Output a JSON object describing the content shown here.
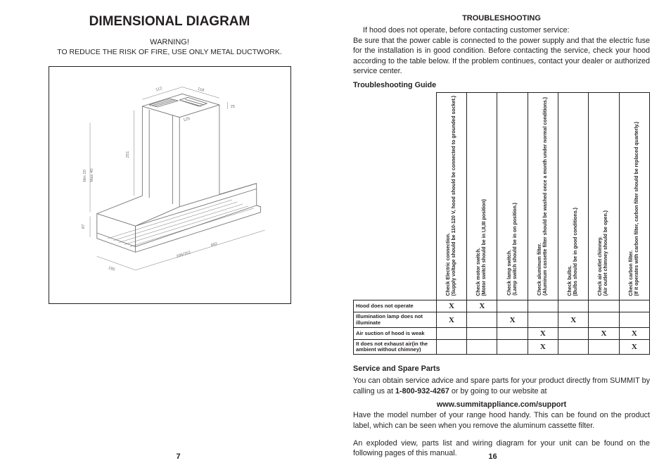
{
  "left": {
    "title": "DIMENSIONAL DIAGRAM",
    "warning_line1": "WARNING!",
    "warning_line2": "TO REDUCE THE RISK OF FIRE, USE ONLY METAL DUCTWORK.",
    "page_number": "7",
    "diagram": {
      "dims": {
        "top_a": "112",
        "top_b": "118",
        "vent_gap": "25",
        "chimney_width": "125",
        "height": "251",
        "min_label": "Min 20",
        "max_label": "Max 40",
        "base_depth_a": "114",
        "base_height": "87",
        "hood_depth": "195",
        "hood_front_a": "295/352",
        "hood_front_b": "492"
      },
      "stroke": "#757374",
      "stroke_width": 0.9
    }
  },
  "right": {
    "ts_heading": "TROUBLESHOOTING",
    "intro_line": "If hood does not operate, before contacting customer service:",
    "intro_para": "Be sure that the power cable is connected to the power supply and that the electric fuse for the installation is in good condition.   Before contacting the service, check your hood according to the table below.  If the problem continues, contact your dealer or  authorized service center.",
    "guide_label": "Troubleshooting Guide",
    "columns": [
      {
        "bold": "Check Electric connection.",
        "sub": "(Supply voltage should be 110-120 V, hood should be connected to grounded socket.)"
      },
      {
        "bold": "Check motor switch.",
        "sub": "(Motor switch should be in I,II,III position)"
      },
      {
        "bold": "Check lamp switch.",
        "sub": "(Lamp switch should be in on position.)"
      },
      {
        "bold": "Check aluminum filter.",
        "sub": "(Aluminum cassette filter should be washed once a month under normal conditions.)"
      },
      {
        "bold": "Check bulbs.",
        "sub": "(Bulbs should be in good conditions.)"
      },
      {
        "bold": "Check air outlet chimney.",
        "sub": "(Air outlet chimney should be open.)"
      },
      {
        "bold": "Check carbon filter.",
        "sub": "(If it operates with carbon filter, carbon filter should be replaced quarterly.)"
      }
    ],
    "rows": [
      {
        "label": "Hood does not operate",
        "marks": [
          "X",
          "X",
          "",
          "",
          "",
          "",
          ""
        ]
      },
      {
        "label": "Illumination lamp does not illuminate",
        "marks": [
          "X",
          "",
          "X",
          "",
          "X",
          "",
          ""
        ]
      },
      {
        "label": "Air suction of hood is weak",
        "marks": [
          "",
          "",
          "",
          "X",
          "",
          "X",
          "X"
        ]
      },
      {
        "label": "It does not exhaust air(in the ambient without chimney)",
        "marks": [
          "",
          "",
          "",
          "X",
          "",
          "",
          "X"
        ]
      }
    ],
    "service_head": "Service and Spare Parts",
    "service_p1a": "You can obtain service advice and spare parts for your product directly from SUMMIT by calling us at ",
    "service_p1_phone": "1-800-932-4267",
    "service_p1b": " or by going to our website at",
    "service_url": "www.summitappliance.com/support",
    "service_p2": "Have the model number of your range hood handy.  This can be found on the product label, which can be seen when you remove the aluminum cassette filter.",
    "service_p3": "An exploded view, parts list and wiring diagram for your unit can be found on the following pages of this manual.",
    "page_number": "16"
  }
}
